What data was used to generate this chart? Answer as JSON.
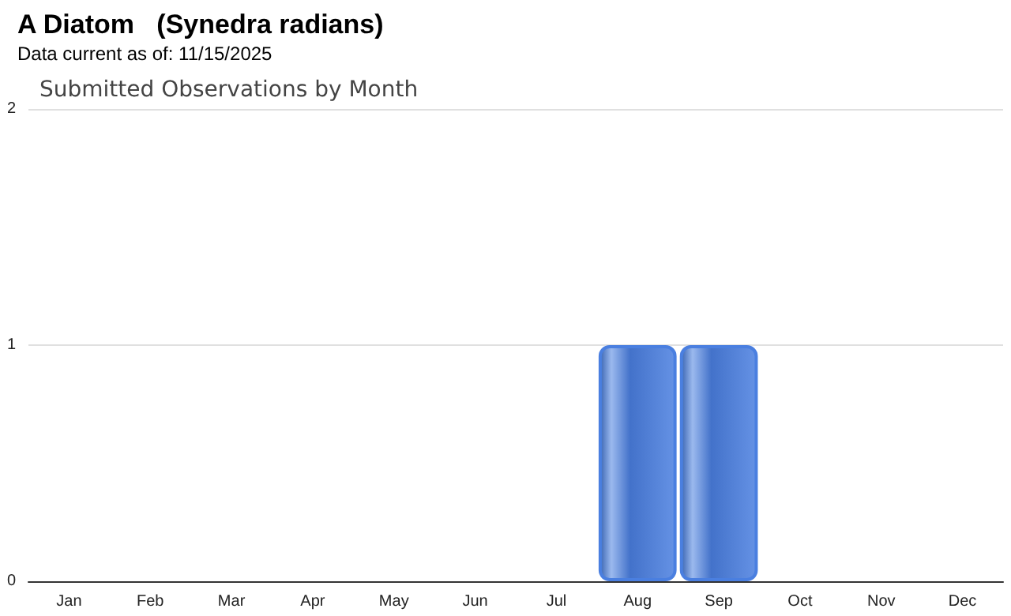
{
  "chart_data": {
    "type": "bar",
    "title": "A Diatom   (Synedra radians)",
    "subtitle": "Data current as of: 11/15/2025",
    "annotations": [
      "Submitted Observations by Month"
    ],
    "categories": [
      "Jan",
      "Feb",
      "Mar",
      "Apr",
      "May",
      "Jun",
      "Jul",
      "Aug",
      "Sep",
      "Oct",
      "Nov",
      "Dec"
    ],
    "values": [
      0,
      0,
      0,
      0,
      0,
      0,
      0,
      1,
      1,
      0,
      0,
      0
    ],
    "color": "#4a7fe0",
    "ylim": [
      0,
      2
    ],
    "yticks": [
      0,
      1,
      2
    ],
    "grid": "y"
  }
}
